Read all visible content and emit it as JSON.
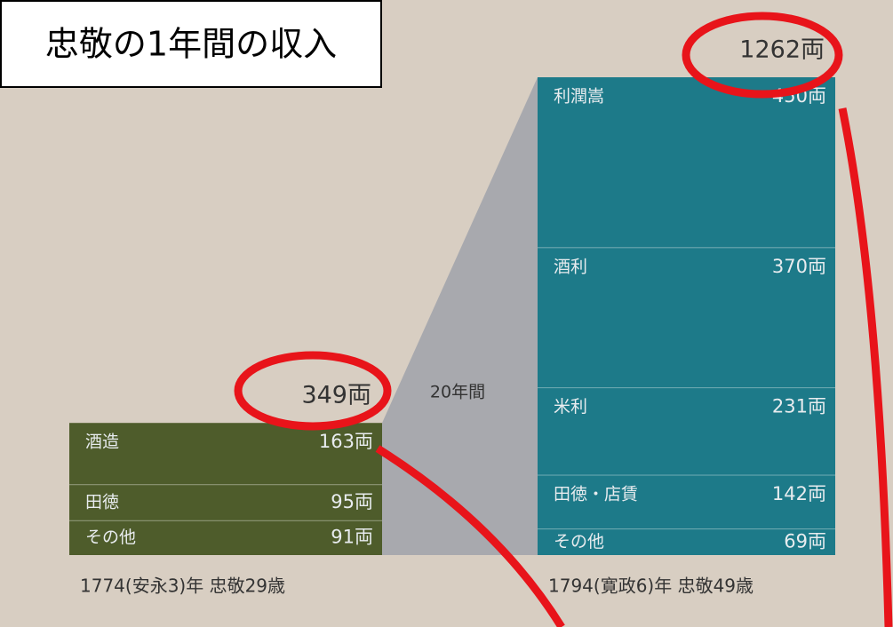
{
  "chart_data": {
    "type": "stacked-bar",
    "title": "忠敬の1年間の収入",
    "annotation": "20年間",
    "bars": [
      {
        "label": "1774(安永3)年 忠敬29歳",
        "total": 349,
        "total_label": "349両",
        "color": "#4e5c2b",
        "segments": [
          {
            "name": "酒造",
            "value": 163,
            "value_label": "163両"
          },
          {
            "name": "田徳",
            "value": 95,
            "value_label": "95両"
          },
          {
            "name": "その他",
            "value": 91,
            "value_label": "91両"
          }
        ]
      },
      {
        "label": "1794(寛政6)年 忠敬49歳",
        "total": 1262,
        "total_label": "1262両",
        "color": "#1d7a89",
        "segments": [
          {
            "name": "利潤嵩",
            "value": 450,
            "value_label": "450両"
          },
          {
            "name": "酒利",
            "value": 370,
            "value_label": "370両"
          },
          {
            "name": "米利",
            "value": 231,
            "value_label": "231両"
          },
          {
            "name": "田徳・店賃",
            "value": 142,
            "value_label": "142両"
          },
          {
            "name": "その他",
            "value": 69,
            "value_label": "69両"
          }
        ]
      }
    ]
  }
}
